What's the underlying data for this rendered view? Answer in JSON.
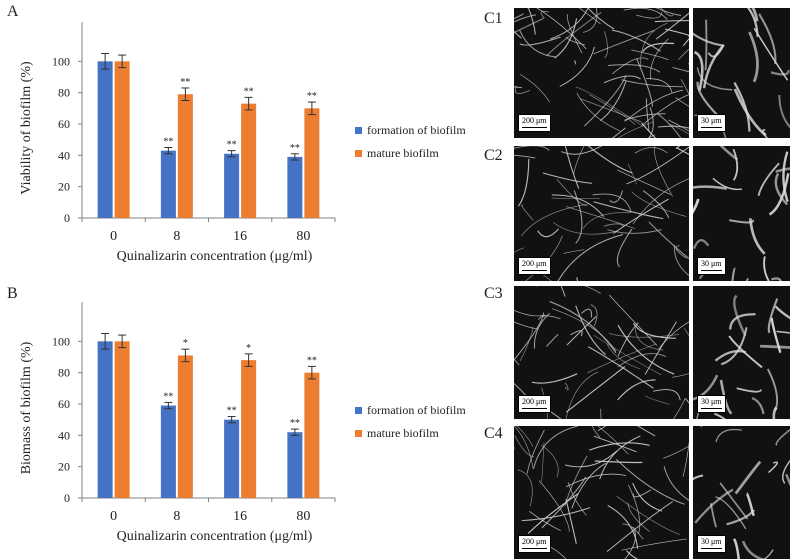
{
  "colors": {
    "formation": "#4472c4",
    "mature": "#ed7d31",
    "axis": "#808080"
  },
  "panels": {
    "A": "A",
    "B": "B",
    "C1": "C1",
    "C2": "C2",
    "C3": "C3",
    "C4": "C4"
  },
  "chart_data": [
    {
      "type": "bar",
      "panel": "A",
      "categories": [
        "0",
        "8",
        "16",
        "80"
      ],
      "series": [
        {
          "name": "formation of biofilm",
          "values": [
            100,
            43,
            41,
            39
          ],
          "errors": [
            5,
            2,
            2,
            2
          ],
          "significance": [
            "",
            "**",
            "**",
            "**"
          ]
        },
        {
          "name": "mature biofilm",
          "values": [
            100,
            79,
            73,
            70
          ],
          "errors": [
            4,
            4,
            4,
            4
          ],
          "significance": [
            "",
            "**",
            "**",
            "**"
          ]
        }
      ],
      "xlabel": "Quinalizarin  concentration (μg/ml)",
      "ylabel": "Viability of biofilm (%)",
      "ylim": [
        0,
        120
      ],
      "yticks": [
        "0",
        "20",
        "40",
        "60",
        "80",
        "100"
      ],
      "legend": "right",
      "grid": false
    },
    {
      "type": "bar",
      "panel": "B",
      "categories": [
        "0",
        "8",
        "16",
        "80"
      ],
      "series": [
        {
          "name": "formation of biofilm",
          "values": [
            100,
            59,
            50,
            42
          ],
          "errors": [
            5,
            2,
            2,
            2
          ],
          "significance": [
            "",
            "**",
            "**",
            "**"
          ]
        },
        {
          "name": "mature biofilm",
          "values": [
            100,
            91,
            88,
            80
          ],
          "errors": [
            4,
            4,
            4,
            4
          ],
          "significance": [
            "",
            "*",
            "*",
            "**"
          ]
        }
      ],
      "xlabel": "Quinalizarin  concentration (μg/ml)",
      "ylabel": "Biomass of biofilm (%)",
      "ylim": [
        0,
        120
      ],
      "yticks": [
        "0",
        "20",
        "40",
        "60",
        "80",
        "100"
      ],
      "legend": "right",
      "grid": false
    }
  ],
  "micrographs": [
    {
      "label": "C1",
      "scale_left": "200 μm",
      "scale_right": "30 μm"
    },
    {
      "label": "C2",
      "scale_left": "200 μm",
      "scale_right": "30 μm"
    },
    {
      "label": "C3",
      "scale_left": "200 μm",
      "scale_right": "30 μm"
    },
    {
      "label": "C4",
      "scale_left": "200 μm",
      "scale_right": "30 μm"
    }
  ]
}
